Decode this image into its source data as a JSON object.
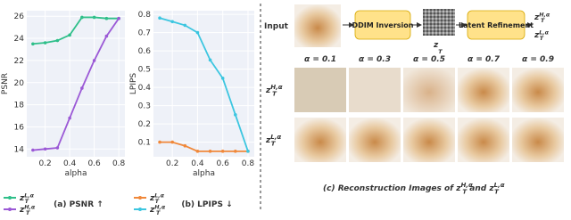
{
  "chart_data": [
    {
      "type": "line",
      "y_label": "PSNR",
      "x_label": "alpha",
      "caption": "(a) PSNR ↑",
      "xlim": [
        0.05,
        0.85
      ],
      "xticks": [
        0.2,
        0.4,
        0.6,
        0.8
      ],
      "ylim": [
        13.3,
        26.5
      ],
      "yticks": [
        14,
        16,
        18,
        20,
        22,
        24,
        26
      ],
      "grid": true,
      "x": [
        0.1,
        0.2,
        0.3,
        0.4,
        0.5,
        0.6,
        0.7,
        0.8
      ],
      "series": [
        {
          "name": "z_T^{L,α}",
          "color": "#2fbf8a",
          "values": [
            23.5,
            23.6,
            23.8,
            24.3,
            25.9,
            25.9,
            25.8,
            25.8
          ]
        },
        {
          "name": "z_T^{H,α}",
          "color": "#9b59d6",
          "values": [
            13.9,
            14.0,
            14.1,
            16.8,
            19.5,
            22.0,
            24.2,
            25.8
          ]
        }
      ]
    },
    {
      "type": "line",
      "y_label": "LPIPS",
      "x_label": "alpha",
      "caption": "(b) LPIPS ↓",
      "xlim": [
        0.05,
        0.85
      ],
      "xticks": [
        0.2,
        0.4,
        0.6,
        0.8
      ],
      "ylim": [
        0.02,
        0.82
      ],
      "yticks": [
        0.1,
        0.2,
        0.3,
        0.4,
        0.5,
        0.6,
        0.7,
        0.8
      ],
      "grid": true,
      "x": [
        0.1,
        0.2,
        0.3,
        0.4,
        0.5,
        0.6,
        0.7,
        0.8
      ],
      "series": [
        {
          "name": "z_T^{L,α}",
          "color": "#f0883a",
          "values": [
            0.1,
            0.1,
            0.08,
            0.05,
            0.05,
            0.05,
            0.05,
            0.05
          ]
        },
        {
          "name": "z_T^{H,α}",
          "color": "#3cc6e0",
          "values": [
            0.78,
            0.76,
            0.74,
            0.7,
            0.55,
            0.45,
            0.25,
            0.05
          ]
        }
      ]
    }
  ],
  "figure": {
    "input": "Input",
    "step1": "DDIM Inversion",
    "noise": "z_T^{}",
    "step2": "Latent Refinement",
    "out_h": "z_T^{H,α}",
    "out_l": "z_T^{L,α}",
    "alphas": [
      "α = 0.1",
      "α = 0.3",
      "α = 0.5",
      "α = 0.7",
      "α = 0.9"
    ],
    "row_h": "z_T^{H,α}",
    "row_l": "z_T^{L,α}",
    "caption": "(c) Reconstruction Images of z_T^{H,α} and z_T^{L,α}"
  }
}
